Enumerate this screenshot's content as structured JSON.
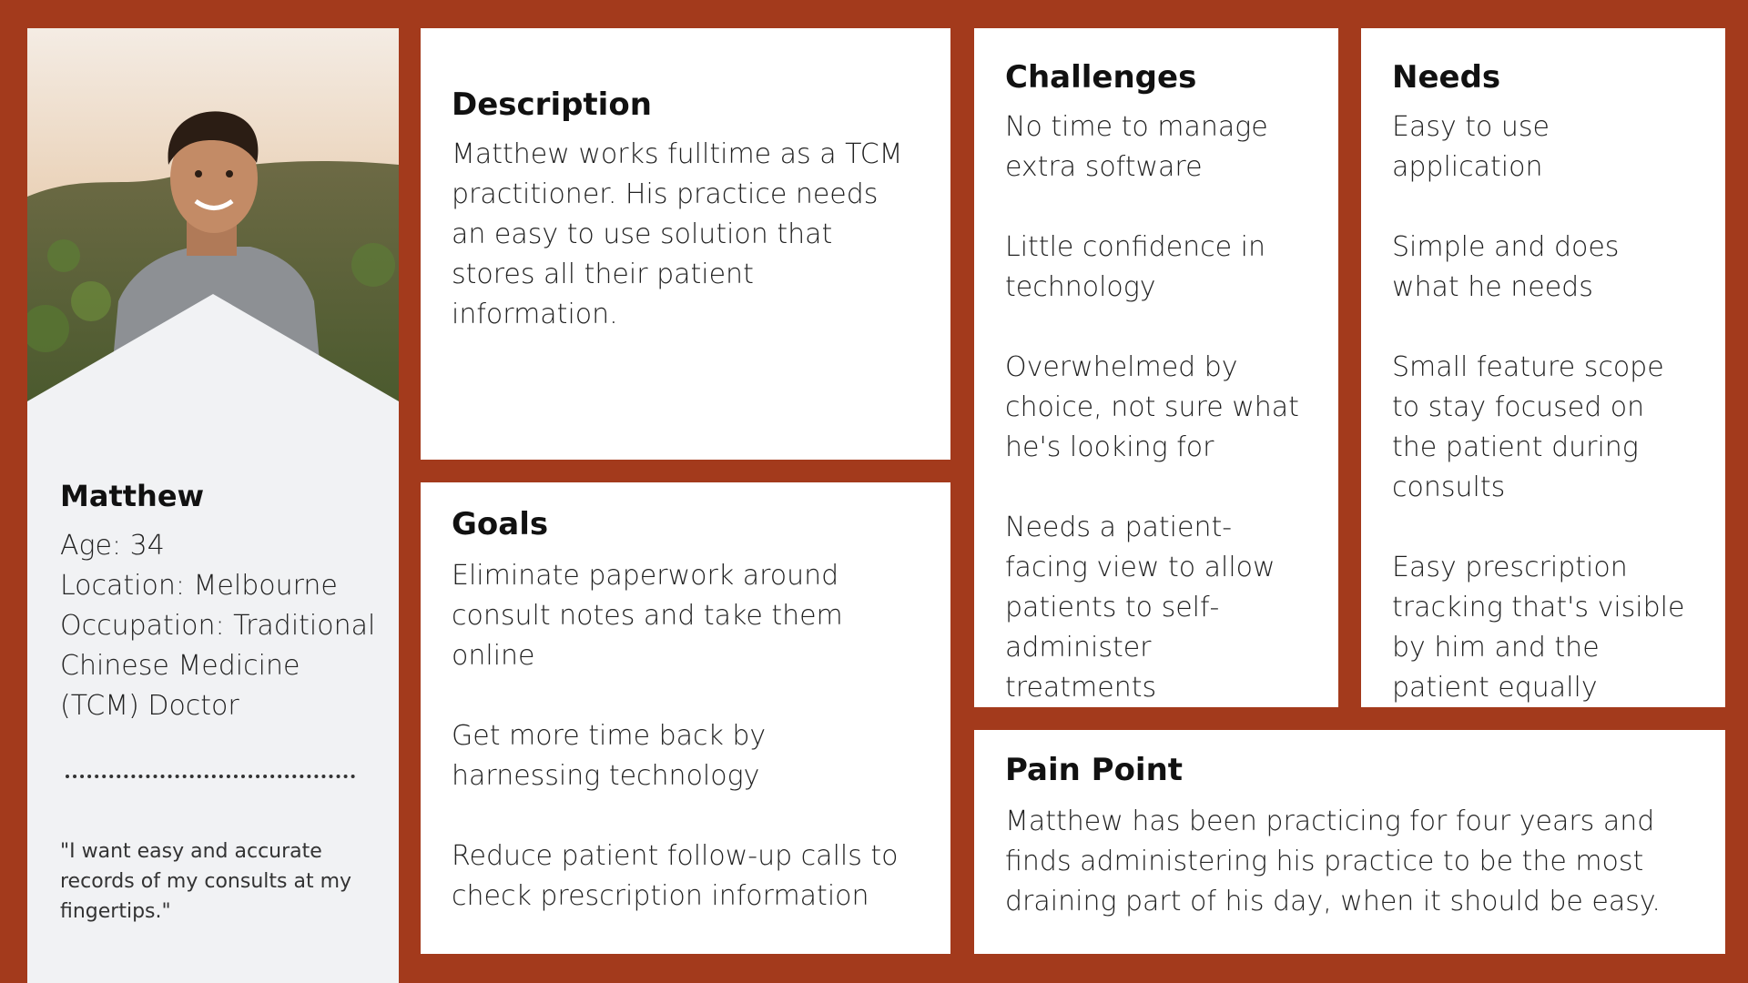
{
  "profile": {
    "name": "Matthew",
    "age": "Age: 34",
    "location": "Location: Melbourne",
    "occupation": "Occupation: Traditional Chinese Medicine (TCM) Doctor",
    "quote": "\"I want easy and accurate records of my consults at my fingertips.\""
  },
  "description": {
    "title": "Description",
    "text": "Matthew works fulltime as a TCM practitioner. His practice needs an easy to use solution that stores all their patient information."
  },
  "goals": {
    "title": "Goals",
    "items": [
      "Eliminate paperwork around consult notes and take them online",
      "Get more time back by harnessing technology",
      "Reduce patient follow-up calls to check prescription information"
    ]
  },
  "challenges": {
    "title": "Challenges",
    "items": [
      "No time to manage extra software",
      "Little confidence in technology",
      "Overwhelmed by choice, not sure what he's looking for",
      "Needs a patient-facing view to allow patients to self-administer treatments"
    ]
  },
  "needs": {
    "title": "Needs",
    "items": [
      "Easy to use application",
      "Simple and does what he needs",
      "Small feature scope to stay focused on the patient during consults",
      "Easy prescription tracking that's visible by him and the patient equally"
    ]
  },
  "pain_point": {
    "title": "Pain Point",
    "text": "Matthew has been practicing for four years and finds administering his practice to be the most draining part of his day, when it should be easy."
  },
  "colors": {
    "background": "#A33A1C",
    "card": "#FFFFFF",
    "profile_panel": "#F1F2F4"
  }
}
